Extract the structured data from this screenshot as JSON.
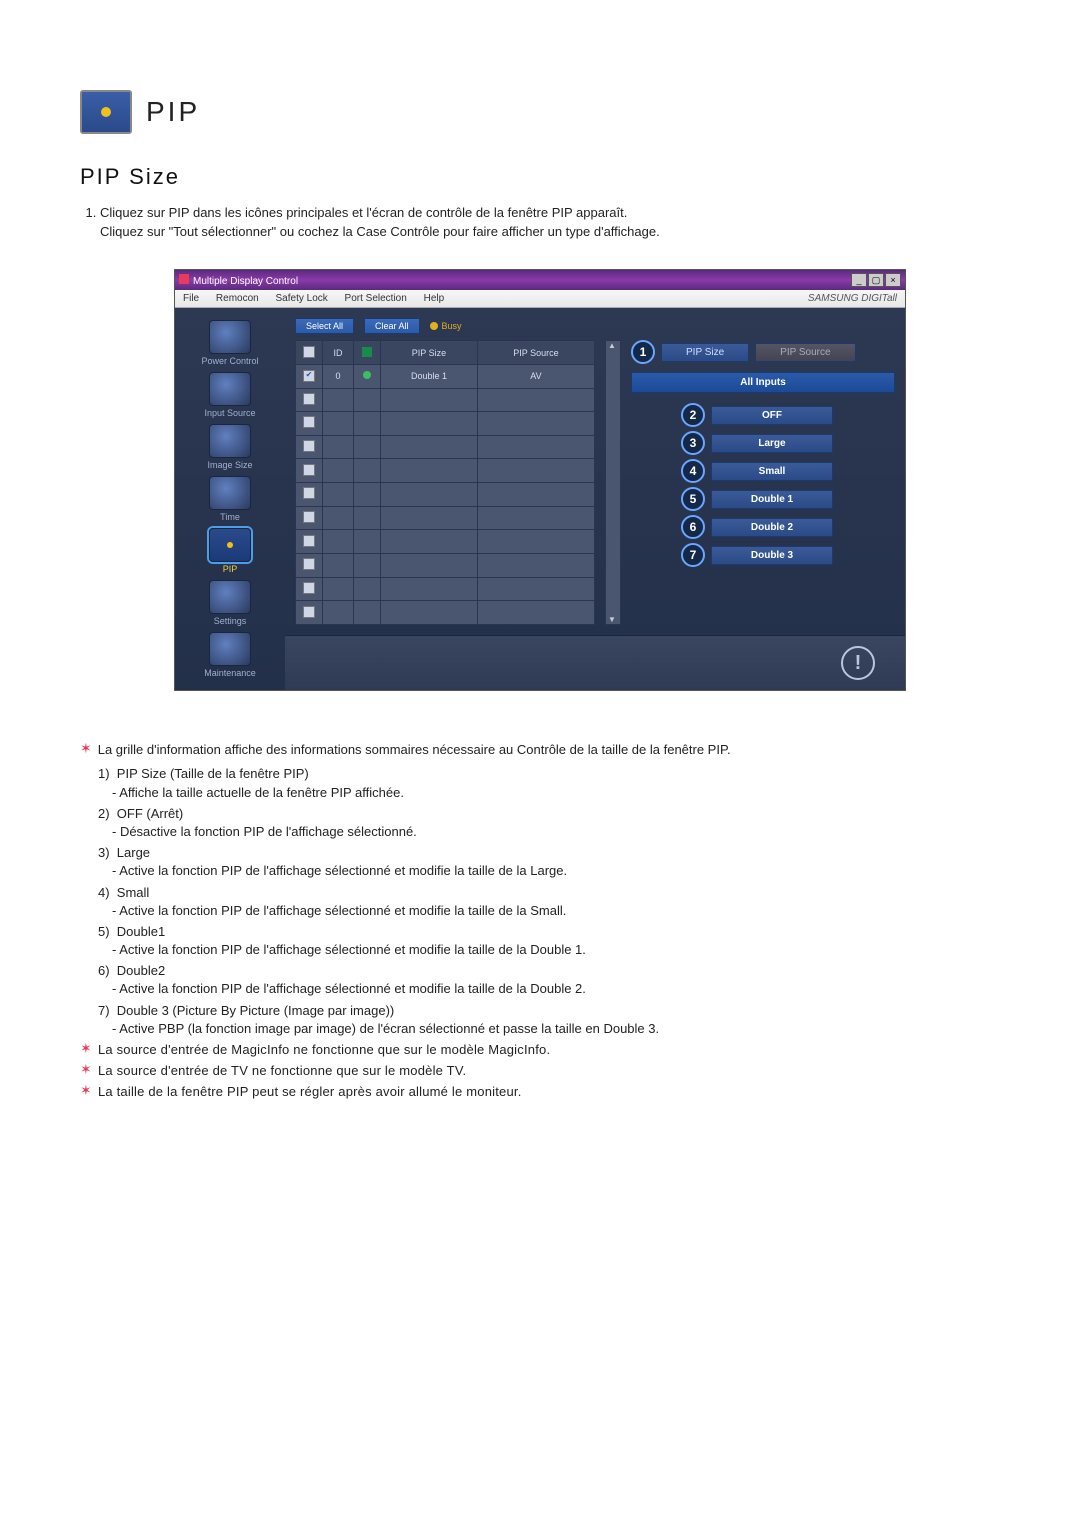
{
  "header": {
    "title": "PIP"
  },
  "section_title": "PIP Size",
  "intro": [
    "Cliquez sur PIP dans les icônes principales et l'écran de contrôle de la fenêtre PIP apparaît.",
    "Cliquez sur \"Tout sélectionner\" ou cochez la Case Contrôle pour faire afficher un type d'affichage."
  ],
  "shot": {
    "window_title": "Multiple Display Control",
    "brand": "SAMSUNG DIGITall",
    "menus": [
      "File",
      "Remocon",
      "Safety Lock",
      "Port Selection",
      "Help"
    ],
    "sidebar": [
      {
        "label": "Power Control"
      },
      {
        "label": "Input Source"
      },
      {
        "label": "Image Size"
      },
      {
        "label": "Time"
      },
      {
        "label": "PIP",
        "active": true
      },
      {
        "label": "Settings"
      },
      {
        "label": "Maintenance"
      }
    ],
    "btn_select_all": "Select All",
    "btn_clear_all": "Clear All",
    "busy": "Busy",
    "grid": {
      "headers": [
        "",
        "ID",
        "",
        "PIP Size",
        "PIP Source"
      ],
      "row": {
        "checked": true,
        "id": "0",
        "pip_size": "Double 1",
        "pip_source": "AV"
      }
    },
    "tabs": {
      "pip_size": "PIP Size",
      "pip_source": "PIP Source"
    },
    "all_inputs": "All Inputs",
    "options": [
      {
        "n": "2",
        "label": "OFF"
      },
      {
        "n": "3",
        "label": "Large"
      },
      {
        "n": "4",
        "label": "Small"
      },
      {
        "n": "5",
        "label": "Double 1"
      },
      {
        "n": "6",
        "label": "Double 2"
      },
      {
        "n": "7",
        "label": "Double 3"
      }
    ],
    "tab_number": "1"
  },
  "star_intro": "La grille d'information affiche des informations sommaires nécessaire au Contrôle de la taille de la fenêtre PIP.",
  "items": [
    {
      "n": "1)",
      "title": "PIP Size (Taille de la fenêtre PIP)",
      "desc": "- Affiche la taille actuelle de la fenêtre PIP affichée."
    },
    {
      "n": "2)",
      "title": "OFF (Arrêt)",
      "desc": "- Désactive la fonction PIP de l'affichage sélectionné."
    },
    {
      "n": "3)",
      "title": "Large",
      "desc": "- Active la fonction PIP de l'affichage sélectionné et modifie la taille de la Large."
    },
    {
      "n": "4)",
      "title": "Small",
      "desc": "- Active la fonction PIP de l'affichage sélectionné et modifie la taille de la Small."
    },
    {
      "n": "5)",
      "title": "Double1",
      "desc": "- Active la fonction PIP de l'affichage sélectionné et modifie la taille de la Double 1."
    },
    {
      "n": "6)",
      "title": "Double2",
      "desc": "- Active la fonction PIP de l'affichage sélectionné et modifie la taille de la Double 2."
    },
    {
      "n": "7)",
      "title": "Double 3 (Picture By Picture (Image par image))",
      "desc": "- Active PBP (la fonction image par image) de l'écran sélectionné et passe la taille en Double 3."
    }
  ],
  "star_notes": [
    "La source d'entrée de MagicInfo ne fonctionne que sur le modèle MagicInfo.",
    "La source d'entrée de TV ne fonctionne que sur le modèle TV.",
    "La taille de la fenêtre PIP peut se régler après avoir allumé le moniteur."
  ]
}
